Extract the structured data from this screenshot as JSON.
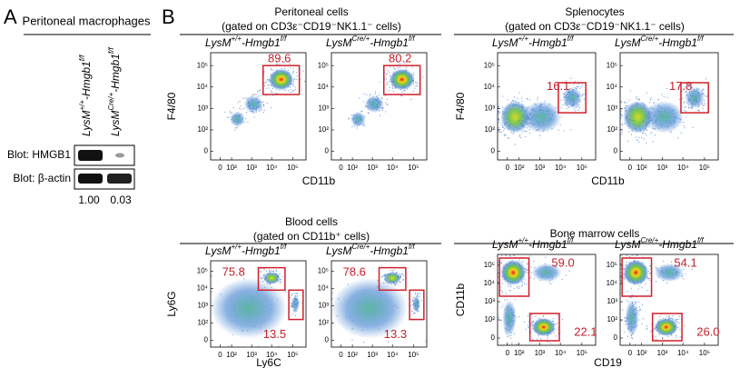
{
  "panel_a": {
    "letter": "A",
    "title": "Peritoneal macrophages",
    "lanes": [
      {
        "base": "LysM",
        "sup": "+/+",
        "mid": "-Hmgb1",
        "sup2": "f/f"
      },
      {
        "base": "LysM",
        "sup": "Cre/+",
        "mid": "-Hmgb1",
        "sup2": "f/f"
      }
    ],
    "blots": [
      "Blot: HMGB1",
      "Blot: β-actin"
    ],
    "quantification": [
      "1.00",
      "0.03"
    ]
  },
  "panel_b": {
    "letter": "B",
    "ticks": [
      "0",
      "10²",
      "10³",
      "10⁴",
      "10⁵"
    ],
    "groups": [
      {
        "title": "Peritoneal cells",
        "subtitle": "(gated on CD3ε⁻CD19⁻NK1.1⁻ cells)",
        "x_label": "CD11b",
        "y_label": "F4/80",
        "plots": [
          {
            "genotype": {
              "base": "LysM",
              "sup": "+/+",
              "mid": "-Hmgb1",
              "sup2": "f/f"
            },
            "gates": [
              "89.6"
            ]
          },
          {
            "genotype": {
              "base": "LysM",
              "sup": "Cre/+",
              "mid": "-Hmgb1",
              "sup2": "f/f"
            },
            "gates": [
              "80.2"
            ]
          }
        ]
      },
      {
        "title": "Splenocytes",
        "subtitle": "(gated on CD3ε⁻CD19⁻NK1.1⁻ cells)",
        "x_label": "CD11b",
        "y_label": "F4/80",
        "plots": [
          {
            "genotype": {
              "base": "LysM",
              "sup": "+/+",
              "mid": "-Hmgb1",
              "sup2": "f/f"
            },
            "gates": [
              "16.1"
            ]
          },
          {
            "genotype": {
              "base": "LysM",
              "sup": "Cre/+",
              "mid": "-Hmgb1",
              "sup2": "f/f"
            },
            "gates": [
              "17.8"
            ]
          }
        ]
      },
      {
        "title": "Blood cells",
        "subtitle": "(gated on CD11b⁺ cells)",
        "x_label": "Ly6C",
        "y_label": "Ly6G",
        "plots": [
          {
            "genotype": {
              "base": "LysM",
              "sup": "+/+",
              "mid": "-Hmgb1",
              "sup2": "f/f"
            },
            "gates": [
              "75.8",
              "13.5"
            ]
          },
          {
            "genotype": {
              "base": "LysM",
              "sup": "Cre/+",
              "mid": "-Hmgb1",
              "sup2": "f/f"
            },
            "gates": [
              "78.6",
              "13.3"
            ]
          }
        ]
      },
      {
        "title": "Bone marrow cells",
        "x_label": "CD19",
        "y_label": "CD11b",
        "plots": [
          {
            "genotype": {
              "base": "LysM",
              "sup": "+/+",
              "mid": "-Hmgb1",
              "sup2": "f/f"
            },
            "gates": [
              "59.0",
              "22.1"
            ]
          },
          {
            "genotype": {
              "base": "LysM",
              "sup": "Cre/+",
              "mid": "-Hmgb1",
              "sup2": "f/f"
            },
            "gates": [
              "54.1",
              "26.0"
            ]
          }
        ]
      }
    ]
  }
}
